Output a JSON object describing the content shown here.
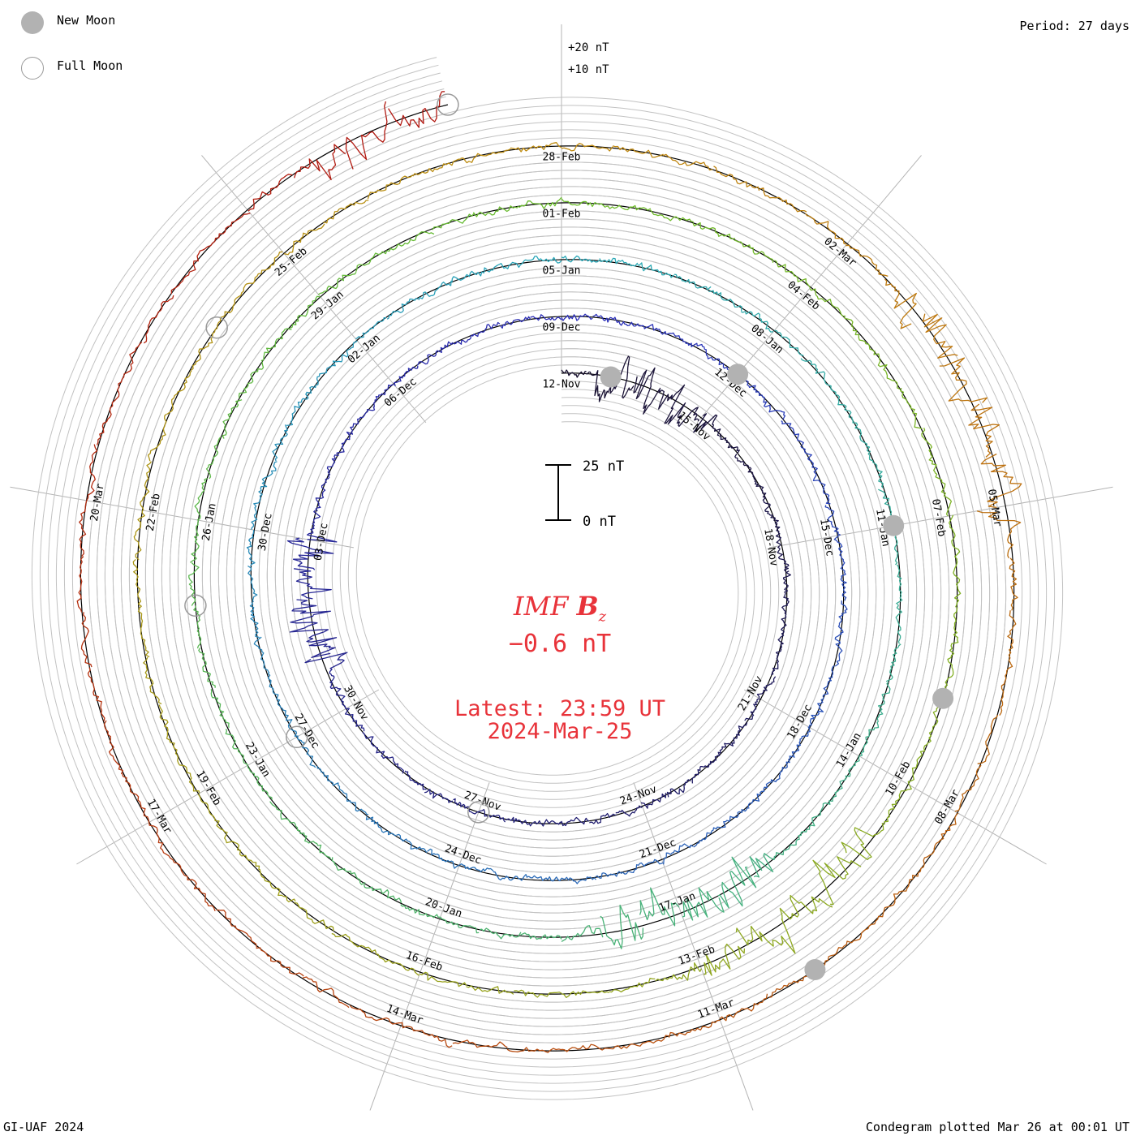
{
  "period_label": "Period: 27 days",
  "credit": "GI-UAF 2024",
  "plotted_label": "Condegram plotted Mar 26 at 00:01 UT",
  "legend": {
    "new_moon": "New Moon",
    "full_moon": "Full Moon",
    "new_moon_color": "#b2b2b2",
    "full_moon_color": "#9a9a9a"
  },
  "center": {
    "quantity_label": "IMF",
    "quantity_symbol": "B",
    "quantity_subscript": "z",
    "current_value": "−0.6 nT",
    "latest_label": "Latest: 23:59 UT",
    "latest_date": "2024-Mar-25",
    "text_color": "#e8333a"
  },
  "scale_bar": {
    "top_label": "25 nT",
    "bottom_label": "0 nT"
  },
  "chart_data": {
    "type": "line",
    "title": "IMF Bz",
    "plot_style": "condegram spiral",
    "units": "nT",
    "period_days": 27,
    "start_date": "2023-11-12",
    "end_date": "2024-03-25",
    "latest_value_nT": -0.6,
    "reference_labels": [
      "+20 nT",
      "+10 nT"
    ],
    "scale_bar_nT": [
      0,
      25
    ],
    "date_labels": [
      "12-Nov",
      "15-Nov",
      "18-Nov",
      "21-Nov",
      "24-Nov",
      "27-Nov",
      "30-Nov",
      "03-Dec",
      "06-Dec",
      "09-Dec",
      "12-Dec",
      "15-Dec",
      "18-Dec",
      "21-Dec",
      "24-Dec",
      "27-Dec",
      "30-Dec",
      "02-Jan",
      "05-Jan",
      "08-Jan",
      "11-Jan",
      "14-Jan",
      "17-Jan",
      "20-Jan",
      "23-Jan",
      "26-Jan",
      "29-Jan",
      "01-Feb",
      "04-Feb",
      "07-Feb",
      "10-Feb",
      "13-Feb",
      "16-Feb",
      "19-Feb",
      "22-Feb",
      "25-Feb",
      "28-Feb",
      "02-Mar",
      "05-Mar",
      "08-Mar",
      "11-Mar",
      "14-Mar",
      "17-Mar",
      "20-Mar"
    ],
    "turns": [
      {
        "start": "12-Nov",
        "color": "#191130"
      },
      {
        "start": "09-Dec",
        "color": "#2b2eb8"
      },
      {
        "start": "05-Jan",
        "color": "#2aa8b8"
      },
      {
        "start": "01-Feb",
        "color": "#6cbd2c"
      },
      {
        "start": "28-Feb",
        "color": "#c08a10"
      }
    ],
    "new_moon_dates": [
      "2023-11-13",
      "2023-12-12",
      "2024-01-11",
      "2024-02-09",
      "2024-03-10"
    ],
    "full_moon_dates": [
      "2023-11-27",
      "2023-12-27",
      "2024-01-25",
      "2024-02-24",
      "2024-03-25"
    ],
    "notable_events": [
      {
        "date": "2023-11-13",
        "bz_min_nT": -15
      },
      {
        "date": "2023-12-01",
        "bz_min_nT": -25
      },
      {
        "date": "2024-01-16",
        "bz_min_nT": -13
      },
      {
        "date": "2024-02-11",
        "bz_min_nT": -18
      },
      {
        "date": "2024-03-03",
        "bz_min_nT": -15
      },
      {
        "date": "2024-03-24",
        "bz_min_nT": -20
      }
    ]
  }
}
